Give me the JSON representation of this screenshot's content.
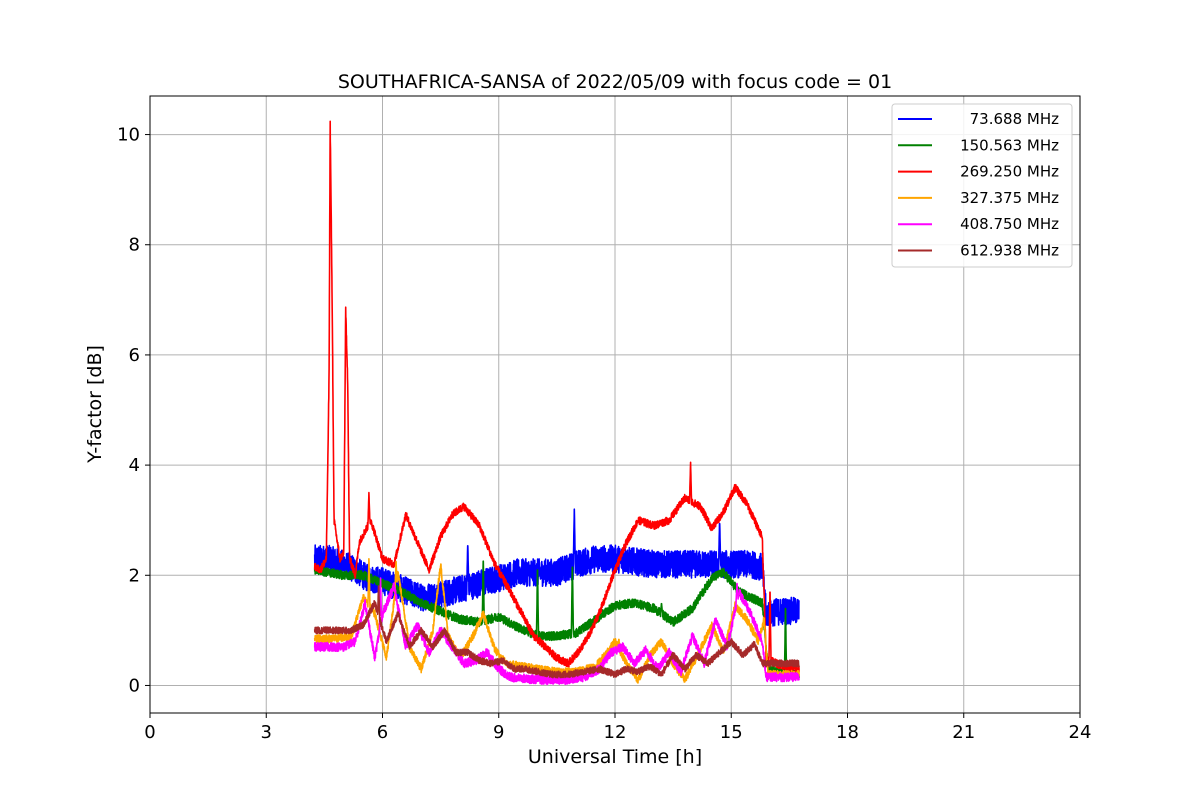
{
  "chart_data": {
    "type": "line",
    "title": "SOUTHAFRICA-SANSA of 2022/05/09 with focus code = 01",
    "xlabel": "Universal Time [h]",
    "ylabel": "Y-factor [dB]",
    "xlim": [
      0,
      24
    ],
    "ylim": [
      -0.5,
      10.7
    ],
    "xticks": [
      0,
      3,
      6,
      9,
      12,
      15,
      18,
      21,
      24
    ],
    "yticks": [
      0,
      2,
      4,
      6,
      8,
      10
    ],
    "xtick_labels": [
      "0",
      "3",
      "6",
      "9",
      "12",
      "15",
      "18",
      "21",
      "24"
    ],
    "ytick_labels": [
      "0",
      "2",
      "4",
      "6",
      "8",
      "10"
    ],
    "grid": true,
    "legend_position": "top-right",
    "series": [
      {
        "name": "73.688 MHz",
        "color": "#0000ff",
        "noise": 0.25,
        "points": [
          [
            4.25,
            2.3
          ],
          [
            4.6,
            2.3
          ],
          [
            5.0,
            2.2
          ],
          [
            5.3,
            2.1
          ],
          [
            5.6,
            1.95
          ],
          [
            6.0,
            1.9
          ],
          [
            6.5,
            1.75
          ],
          [
            7.0,
            1.6
          ],
          [
            7.5,
            1.65
          ],
          [
            8.0,
            1.75
          ],
          [
            8.5,
            1.85
          ],
          [
            9.0,
            1.95
          ],
          [
            9.5,
            2.05
          ],
          [
            10.0,
            2.05
          ],
          [
            10.5,
            2.05
          ],
          [
            11.0,
            2.2
          ],
          [
            11.5,
            2.3
          ],
          [
            12.0,
            2.3
          ],
          [
            12.5,
            2.25
          ],
          [
            13.0,
            2.2
          ],
          [
            13.5,
            2.2
          ],
          [
            14.0,
            2.2
          ],
          [
            14.5,
            2.2
          ],
          [
            15.0,
            2.2
          ],
          [
            15.5,
            2.2
          ],
          [
            15.8,
            2.15
          ],
          [
            15.9,
            1.3
          ],
          [
            16.3,
            1.35
          ],
          [
            16.75,
            1.35
          ]
        ],
        "spikes": [
          [
            10.95,
            3.2
          ],
          [
            14.7,
            3.0
          ],
          [
            8.2,
            2.6
          ]
        ]
      },
      {
        "name": "150.563 MHz",
        "color": "#008000",
        "noise": 0.08,
        "points": [
          [
            4.25,
            2.1
          ],
          [
            4.6,
            2.05
          ],
          [
            5.0,
            2.0
          ],
          [
            5.5,
            2.0
          ],
          [
            6.0,
            1.85
          ],
          [
            6.5,
            1.7
          ],
          [
            7.0,
            1.5
          ],
          [
            7.5,
            1.35
          ],
          [
            8.0,
            1.2
          ],
          [
            8.5,
            1.15
          ],
          [
            9.0,
            1.25
          ],
          [
            9.5,
            1.05
          ],
          [
            10.0,
            0.9
          ],
          [
            10.5,
            0.9
          ],
          [
            11.0,
            0.95
          ],
          [
            11.5,
            1.2
          ],
          [
            12.0,
            1.45
          ],
          [
            12.5,
            1.5
          ],
          [
            13.0,
            1.4
          ],
          [
            13.5,
            1.15
          ],
          [
            14.0,
            1.4
          ],
          [
            14.5,
            1.95
          ],
          [
            14.8,
            2.05
          ],
          [
            15.2,
            1.7
          ],
          [
            15.8,
            1.5
          ],
          [
            15.95,
            0.3
          ],
          [
            16.4,
            0.2
          ],
          [
            16.75,
            0.2
          ]
        ],
        "spikes": [
          [
            8.6,
            2.35
          ],
          [
            10.9,
            2.25
          ],
          [
            10.0,
            2.2
          ],
          [
            13.2,
            1.5
          ],
          [
            16.4,
            1.5
          ]
        ]
      },
      {
        "name": "269.250 MHz",
        "color": "#ff0000",
        "noise": 0.07,
        "points": [
          [
            4.25,
            2.15
          ],
          [
            4.4,
            2.1
          ],
          [
            4.55,
            2.3
          ],
          [
            4.62,
            5.5
          ],
          [
            4.65,
            10.2
          ],
          [
            4.7,
            7.0
          ],
          [
            4.75,
            3.0
          ],
          [
            4.9,
            2.3
          ],
          [
            5.0,
            2.4
          ],
          [
            5.05,
            6.8
          ],
          [
            5.1,
            5.6
          ],
          [
            5.15,
            2.3
          ],
          [
            5.3,
            2.0
          ],
          [
            5.4,
            2.6
          ],
          [
            5.7,
            3.0
          ],
          [
            6.0,
            2.3
          ],
          [
            6.3,
            2.2
          ],
          [
            6.6,
            3.1
          ],
          [
            6.9,
            2.6
          ],
          [
            7.2,
            2.1
          ],
          [
            7.5,
            2.7
          ],
          [
            7.8,
            3.1
          ],
          [
            8.1,
            3.25
          ],
          [
            8.5,
            2.9
          ],
          [
            8.9,
            2.2
          ],
          [
            9.3,
            1.7
          ],
          [
            9.6,
            1.3
          ],
          [
            9.9,
            0.9
          ],
          [
            10.2,
            0.7
          ],
          [
            10.5,
            0.5
          ],
          [
            10.8,
            0.4
          ],
          [
            11.1,
            0.65
          ],
          [
            11.4,
            1.0
          ],
          [
            11.7,
            1.5
          ],
          [
            12.0,
            2.1
          ],
          [
            12.3,
            2.6
          ],
          [
            12.6,
            3.0
          ],
          [
            13.0,
            2.9
          ],
          [
            13.4,
            3.0
          ],
          [
            13.8,
            3.4
          ],
          [
            14.2,
            3.25
          ],
          [
            14.5,
            2.85
          ],
          [
            14.8,
            3.15
          ],
          [
            15.1,
            3.6
          ],
          [
            15.4,
            3.3
          ],
          [
            15.7,
            2.85
          ],
          [
            15.8,
            2.7
          ],
          [
            15.9,
            0.5
          ],
          [
            16.3,
            0.35
          ],
          [
            16.75,
            0.3
          ]
        ],
        "spikes": [
          [
            13.95,
            4.05
          ],
          [
            5.65,
            3.5
          ],
          [
            16.0,
            1.8
          ]
        ]
      },
      {
        "name": "327.375 MHz",
        "color": "#ffa500",
        "noise": 0.07,
        "points": [
          [
            4.25,
            0.85
          ],
          [
            4.8,
            0.85
          ],
          [
            5.2,
            0.9
          ],
          [
            5.5,
            1.6
          ],
          [
            5.8,
            1.3
          ],
          [
            6.1,
            0.5
          ],
          [
            6.4,
            2.05
          ],
          [
            6.7,
            0.7
          ],
          [
            7.0,
            0.3
          ],
          [
            7.3,
            1.0
          ],
          [
            7.5,
            2.2
          ],
          [
            7.7,
            0.9
          ],
          [
            8.0,
            0.5
          ],
          [
            8.3,
            0.85
          ],
          [
            8.6,
            1.3
          ],
          [
            8.9,
            0.65
          ],
          [
            9.2,
            0.4
          ],
          [
            9.6,
            0.35
          ],
          [
            10.0,
            0.3
          ],
          [
            10.5,
            0.25
          ],
          [
            11.0,
            0.25
          ],
          [
            11.5,
            0.35
          ],
          [
            11.8,
            0.6
          ],
          [
            12.0,
            0.8
          ],
          [
            12.3,
            0.4
          ],
          [
            12.6,
            0.1
          ],
          [
            12.9,
            0.55
          ],
          [
            13.2,
            0.8
          ],
          [
            13.5,
            0.4
          ],
          [
            13.8,
            0.1
          ],
          [
            14.1,
            0.5
          ],
          [
            14.5,
            1.1
          ],
          [
            14.8,
            0.6
          ],
          [
            15.1,
            1.45
          ],
          [
            15.4,
            1.2
          ],
          [
            15.7,
            0.8
          ],
          [
            15.85,
            1.2
          ],
          [
            15.95,
            0.2
          ],
          [
            16.75,
            0.2
          ]
        ],
        "spikes": [
          [
            5.65,
            2.3
          ],
          [
            6.35,
            2.25
          ],
          [
            12.1,
            0.85
          ]
        ]
      },
      {
        "name": "408.750 MHz",
        "color": "#ff00ff",
        "noise": 0.08,
        "points": [
          [
            4.25,
            0.7
          ],
          [
            5.0,
            0.7
          ],
          [
            5.3,
            0.8
          ],
          [
            5.55,
            1.5
          ],
          [
            5.8,
            0.5
          ],
          [
            6.0,
            1.3
          ],
          [
            6.3,
            1.8
          ],
          [
            6.6,
            0.7
          ],
          [
            6.9,
            1.1
          ],
          [
            7.2,
            0.6
          ],
          [
            7.5,
            1.0
          ],
          [
            7.8,
            0.7
          ],
          [
            8.1,
            0.4
          ],
          [
            8.4,
            0.45
          ],
          [
            8.7,
            0.6
          ],
          [
            9.0,
            0.3
          ],
          [
            9.3,
            0.15
          ],
          [
            9.7,
            0.12
          ],
          [
            10.2,
            0.1
          ],
          [
            10.7,
            0.1
          ],
          [
            11.2,
            0.15
          ],
          [
            11.6,
            0.3
          ],
          [
            11.9,
            0.6
          ],
          [
            12.2,
            0.7
          ],
          [
            12.5,
            0.4
          ],
          [
            12.8,
            0.65
          ],
          [
            13.1,
            0.3
          ],
          [
            13.4,
            0.6
          ],
          [
            13.7,
            0.25
          ],
          [
            14.0,
            0.9
          ],
          [
            14.3,
            0.4
          ],
          [
            14.6,
            1.2
          ],
          [
            14.9,
            0.7
          ],
          [
            15.2,
            1.7
          ],
          [
            15.5,
            1.3
          ],
          [
            15.8,
            0.8
          ],
          [
            15.9,
            0.15
          ],
          [
            16.75,
            0.15
          ]
        ],
        "spikes": [
          [
            5.95,
            1.95
          ],
          [
            15.15,
            1.85
          ]
        ]
      },
      {
        "name": "612.938 MHz",
        "color": "#a52a2a",
        "noise": 0.06,
        "points": [
          [
            4.25,
            1.0
          ],
          [
            4.8,
            1.0
          ],
          [
            5.2,
            1.0
          ],
          [
            5.5,
            1.1
          ],
          [
            5.8,
            1.5
          ],
          [
            6.1,
            0.8
          ],
          [
            6.4,
            1.3
          ],
          [
            6.7,
            0.7
          ],
          [
            7.0,
            1.0
          ],
          [
            7.3,
            0.7
          ],
          [
            7.6,
            1.0
          ],
          [
            7.9,
            0.6
          ],
          [
            8.2,
            0.6
          ],
          [
            8.5,
            0.45
          ],
          [
            8.8,
            0.4
          ],
          [
            9.1,
            0.45
          ],
          [
            9.4,
            0.3
          ],
          [
            9.7,
            0.3
          ],
          [
            10.0,
            0.25
          ],
          [
            10.4,
            0.2
          ],
          [
            10.8,
            0.2
          ],
          [
            11.2,
            0.25
          ],
          [
            11.6,
            0.3
          ],
          [
            12.0,
            0.2
          ],
          [
            12.3,
            0.3
          ],
          [
            12.6,
            0.25
          ],
          [
            12.9,
            0.35
          ],
          [
            13.2,
            0.2
          ],
          [
            13.5,
            0.55
          ],
          [
            13.8,
            0.3
          ],
          [
            14.1,
            0.55
          ],
          [
            14.4,
            0.4
          ],
          [
            14.7,
            0.6
          ],
          [
            15.0,
            0.8
          ],
          [
            15.3,
            0.55
          ],
          [
            15.6,
            0.75
          ],
          [
            15.8,
            0.4
          ],
          [
            16.3,
            0.4
          ],
          [
            16.75,
            0.4
          ]
        ],
        "spikes": [
          [
            5.9,
            1.85
          ]
        ]
      }
    ]
  }
}
